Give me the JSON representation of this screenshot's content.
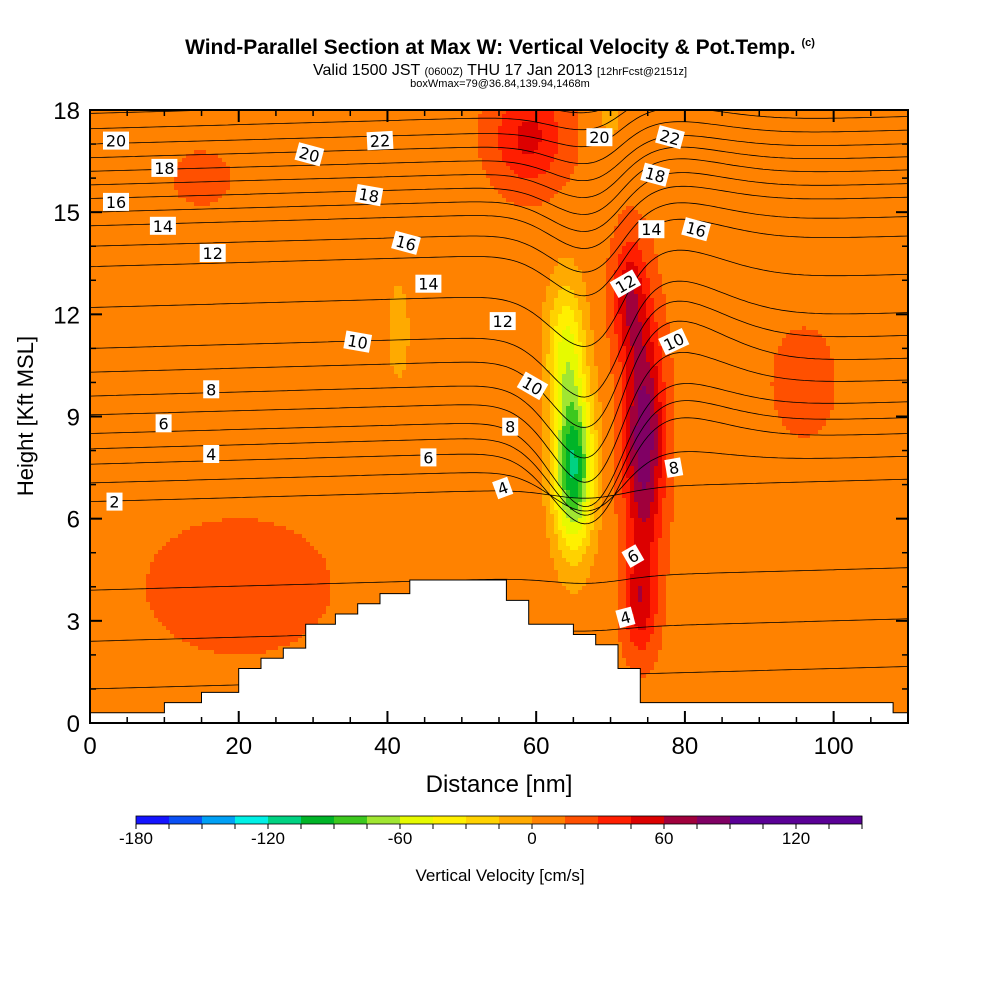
{
  "title": {
    "main": "Wind-Parallel Section at Max W: Vertical Velocity & Pot.Temp.",
    "copyright": "(c)",
    "valid_prefix": "Valid 1500 JST",
    "valid_utc": "(0600Z)",
    "valid_date": "THU 17 Jan 2013",
    "forecast": "[12hrFcst@2151z]",
    "box": "boxWmax=79@36.84,139.94,1468m"
  },
  "chart_data": {
    "type": "contour",
    "xlabel": "Distance [nm]",
    "ylabel": "Height [Kft MSL]",
    "xlim": [
      0,
      110
    ],
    "ylim": [
      0,
      18
    ],
    "xticks": [
      0,
      20,
      40,
      60,
      80,
      100
    ],
    "yticks": [
      0,
      3,
      6,
      9,
      12,
      15,
      18
    ],
    "colorbar": {
      "label": "Vertical Velocity [cm/s]",
      "range": [
        -180,
        150
      ],
      "step": 15,
      "tick_values": [
        -180,
        -120,
        -60,
        0,
        60,
        120
      ],
      "tick_labels": [
        "-180",
        "-120",
        "-60",
        "0",
        "60",
        "120"
      ],
      "colors": [
        "#1414ff",
        "#0a50f5",
        "#00a0f5",
        "#00f0e6",
        "#00d282",
        "#00b428",
        "#3cc81e",
        "#a0e632",
        "#e6fa00",
        "#fff000",
        "#ffd200",
        "#ffaa00",
        "#ff8200",
        "#ff5000",
        "#ff1e00",
        "#dc0000",
        "#a0003c",
        "#800064",
        "#5a0096"
      ]
    },
    "terrain": [
      [
        0,
        0.3
      ],
      [
        10,
        0.3
      ],
      [
        10,
        0.6
      ],
      [
        15,
        0.6
      ],
      [
        15,
        0.9
      ],
      [
        20,
        0.9
      ],
      [
        20,
        1.6
      ],
      [
        23,
        1.6
      ],
      [
        23,
        1.9
      ],
      [
        26,
        1.9
      ],
      [
        26,
        2.2
      ],
      [
        29,
        2.2
      ],
      [
        29,
        2.9
      ],
      [
        33,
        2.9
      ],
      [
        33,
        3.2
      ],
      [
        36,
        3.2
      ],
      [
        36,
        3.5
      ],
      [
        39,
        3.5
      ],
      [
        39,
        3.8
      ],
      [
        43,
        3.8
      ],
      [
        43,
        4.2
      ],
      [
        56,
        4.2
      ],
      [
        56,
        3.6
      ],
      [
        59,
        3.6
      ],
      [
        59,
        2.9
      ],
      [
        65,
        2.9
      ],
      [
        65,
        2.6
      ],
      [
        68,
        2.6
      ],
      [
        68,
        2.3
      ],
      [
        71,
        2.3
      ],
      [
        71,
        1.6
      ],
      [
        74,
        1.6
      ],
      [
        74,
        0.6
      ],
      [
        108,
        0.6
      ],
      [
        108,
        0.3
      ],
      [
        110,
        0.3
      ]
    ],
    "velocity_fields": [
      {
        "name": "updraft_core",
        "x": 74.5,
        "y": 8.3,
        "peak": 79,
        "sx": 2.6,
        "sy": 3.4
      },
      {
        "name": "updraft_upper",
        "x": 72.5,
        "y": 12.5,
        "peak": 45,
        "sx": 2.2,
        "sy": 1.8
      },
      {
        "name": "updraft_top",
        "x": 59,
        "y": 17.2,
        "peak": 40,
        "sx": 5,
        "sy": 1.5
      },
      {
        "name": "updraft_low",
        "x": 74,
        "y": 3.5,
        "peak": 40,
        "sx": 2.2,
        "sy": 1.5
      },
      {
        "name": "downdraft_core",
        "x": 65,
        "y": 7.5,
        "peak": -115,
        "sx": 2.6,
        "sy": 2.3
      },
      {
        "name": "downdraft_mid",
        "x": 64,
        "y": 11,
        "peak": -55,
        "sx": 2.5,
        "sy": 2
      },
      {
        "name": "downdraft_west",
        "x": 41.5,
        "y": 11.5,
        "peak": -20,
        "sx": 1.5,
        "sy": 1.5
      },
      {
        "name": "downdraft_top",
        "x": 70,
        "y": 17.8,
        "peak": -20,
        "sx": 1.2,
        "sy": 0.6
      },
      {
        "name": "sink_west_low",
        "x": 20,
        "y": 4,
        "peak": 12,
        "sx": 15,
        "sy": 2.4
      },
      {
        "name": "lift_east_mid",
        "x": 96,
        "y": 10,
        "peak": 8,
        "sx": 8,
        "sy": 3
      },
      {
        "name": "lift_upper_left",
        "x": 15,
        "y": 16,
        "peak": 7,
        "sx": 10,
        "sy": 2
      }
    ],
    "theta_contours": [
      {
        "label": "2",
        "y_west": 6.5,
        "dip": 0.3,
        "jump": 0
      },
      {
        "label": "4",
        "y_west": 7.6,
        "dip": 2.2,
        "jump": 0.8
      },
      {
        "label": "6",
        "y_west": 8.5,
        "dip": 2.6,
        "jump": 0.9
      },
      {
        "label": "8",
        "y_west": 9.6,
        "dip": 2.3,
        "jump": 1.5
      },
      {
        "label": "10",
        "y_west": 11.0,
        "dip": 1.9,
        "jump": 1.3
      },
      {
        "label": "12",
        "y_west": 13.4,
        "dip": 1.3,
        "jump": 0.8
      },
      {
        "label": "14",
        "y_west": 14.6,
        "dip": 1.1,
        "jump": 0.6
      },
      {
        "label": "16",
        "y_west": 15.4,
        "dip": 0.9,
        "jump": 0.6
      },
      {
        "label": "18",
        "y_west": 16.2,
        "dip": 0.7,
        "jump": 0.5
      },
      {
        "label": "20",
        "y_west": 17.0,
        "dip": 0.5,
        "jump": 0.5
      },
      {
        "label": "22",
        "y_west": 17.9,
        "dip": 0.4,
        "jump": 0.4
      }
    ],
    "contour_labels": [
      {
        "text": "20",
        "x": 3.5,
        "y": 17.1,
        "r": 0
      },
      {
        "text": "18",
        "x": 10,
        "y": 16.3,
        "r": 0
      },
      {
        "text": "16",
        "x": 3.5,
        "y": 15.3,
        "r": 0
      },
      {
        "text": "14",
        "x": 9.8,
        "y": 14.6,
        "r": 0
      },
      {
        "text": "12",
        "x": 16.5,
        "y": 13.8,
        "r": 0
      },
      {
        "text": "8",
        "x": 16.3,
        "y": 9.8,
        "r": 0
      },
      {
        "text": "6",
        "x": 9.9,
        "y": 8.8,
        "r": 0
      },
      {
        "text": "4",
        "x": 16.3,
        "y": 7.9,
        "r": 0
      },
      {
        "text": "2",
        "x": 3.3,
        "y": 6.5,
        "r": 0
      },
      {
        "text": "20",
        "x": 29.5,
        "y": 16.7,
        "r": 15
      },
      {
        "text": "22",
        "x": 39,
        "y": 17.1,
        "r": -3
      },
      {
        "text": "18",
        "x": 37.5,
        "y": 15.5,
        "r": 10
      },
      {
        "text": "16",
        "x": 42.5,
        "y": 14.1,
        "r": 15
      },
      {
        "text": "14",
        "x": 45.5,
        "y": 12.9,
        "r": 0
      },
      {
        "text": "10",
        "x": 36,
        "y": 11.2,
        "r": 10
      },
      {
        "text": "12",
        "x": 55.5,
        "y": 11.8,
        "r": 0
      },
      {
        "text": "10",
        "x": 59.5,
        "y": 9.9,
        "r": 30
      },
      {
        "text": "8",
        "x": 56.5,
        "y": 8.7,
        "r": 0
      },
      {
        "text": "6",
        "x": 45.5,
        "y": 7.8,
        "r": 0
      },
      {
        "text": "4",
        "x": 55.5,
        "y": 6.9,
        "r": -20
      },
      {
        "text": "20",
        "x": 68.5,
        "y": 17.2,
        "r": 0
      },
      {
        "text": "22",
        "x": 78,
        "y": 17.2,
        "r": 15
      },
      {
        "text": "18",
        "x": 76,
        "y": 16.1,
        "r": 15
      },
      {
        "text": "16",
        "x": 81.5,
        "y": 14.5,
        "r": 15
      },
      {
        "text": "14",
        "x": 75.5,
        "y": 14.5,
        "r": 0
      },
      {
        "text": "12",
        "x": 72,
        "y": 12.9,
        "r": -30
      },
      {
        "text": "10",
        "x": 78.5,
        "y": 11.2,
        "r": -25
      },
      {
        "text": "8",
        "x": 78.5,
        "y": 7.5,
        "r": -10
      },
      {
        "text": "6",
        "x": 73,
        "y": 4.9,
        "r": -30
      },
      {
        "text": "4",
        "x": 72,
        "y": 3.1,
        "r": -15
      }
    ]
  }
}
